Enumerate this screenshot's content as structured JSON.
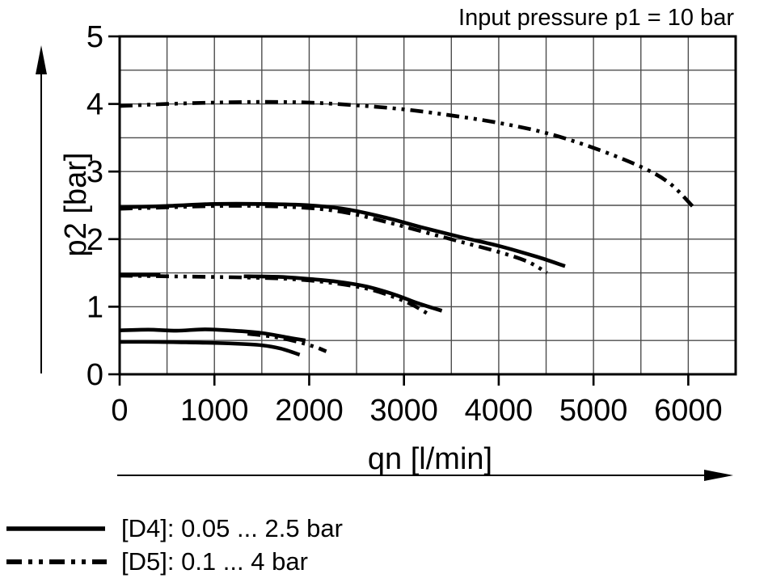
{
  "title": "Input pressure p1 = 10 bar",
  "colors": {
    "line": "#000000",
    "grid": "#4d4d4d",
    "frame": "#000000",
    "background": "#ffffff",
    "text": "#000000"
  },
  "chart_data": {
    "type": "line",
    "title": "Input pressure p1 = 10 bar",
    "xlabel": "qn [l/min]",
    "ylabel": "p2 [bar]",
    "xlim": [
      0,
      6500
    ],
    "ylim": [
      0,
      5
    ],
    "x_ticks": [
      0,
      1000,
      2000,
      3000,
      4000,
      5000,
      6000
    ],
    "y_ticks": [
      0,
      1,
      2,
      3,
      4,
      5
    ],
    "x_grid_step": 500,
    "y_grid_step": 0.5,
    "grid": true,
    "legend_position": "bottom-left",
    "legend": [
      {
        "label": "[D4]: 0.05 ... 2.5 bar",
        "style": "solid"
      },
      {
        "label": "[D5]: 0.1 ... 4 bar",
        "style": "dash-dot-dot"
      }
    ],
    "series": [
      {
        "id": "d4-setting-2.5bar",
        "group": "[D4]",
        "style": "solid",
        "pressure_setting_bar": 2.5,
        "segments": [
          [
            [
              0,
              2.47
            ],
            [
              500,
              2.49
            ],
            [
              1000,
              2.52
            ],
            [
              1500,
              2.52
            ],
            [
              2000,
              2.5
            ],
            [
              2400,
              2.44
            ],
            [
              2800,
              2.32
            ],
            [
              3200,
              2.17
            ],
            [
              3600,
              2.03
            ],
            [
              4000,
              1.9
            ],
            [
              4400,
              1.74
            ],
            [
              4700,
              1.6
            ]
          ]
        ]
      },
      {
        "id": "d4-setting-1.5bar",
        "group": "[D4]",
        "style": "solid",
        "pressure_setting_bar": 1.5,
        "segments": [
          [
            [
              0,
              1.47
            ],
            [
              430,
              1.47
            ]
          ],
          [
            [
              1310,
              1.45
            ],
            [
              1700,
              1.44
            ],
            [
              2000,
              1.41
            ],
            [
              2300,
              1.37
            ],
            [
              2600,
              1.3
            ],
            [
              2900,
              1.18
            ],
            [
              3150,
              1.05
            ],
            [
              3400,
              0.94
            ]
          ]
        ]
      },
      {
        "id": "d4-setting-0.65bar",
        "group": "[D4]",
        "style": "solid",
        "pressure_setting_bar": 0.65,
        "segments": [
          [
            [
              0,
              0.65
            ],
            [
              300,
              0.66
            ],
            [
              600,
              0.645
            ],
            [
              900,
              0.665
            ],
            [
              1200,
              0.645
            ],
            [
              1500,
              0.61
            ],
            [
              1750,
              0.55
            ],
            [
              1960,
              0.5
            ]
          ]
        ]
      },
      {
        "id": "d4-setting-0.5bar",
        "group": "[D4]",
        "style": "solid",
        "pressure_setting_bar": 0.5,
        "segments": [
          [
            [
              0,
              0.48
            ],
            [
              400,
              0.48
            ],
            [
              800,
              0.47
            ],
            [
              1200,
              0.455
            ],
            [
              1500,
              0.43
            ],
            [
              1700,
              0.38
            ],
            [
              1900,
              0.29
            ]
          ]
        ]
      },
      {
        "id": "d5-setting-4bar",
        "group": "[D5]",
        "style": "dash-dot-dot",
        "pressure_setting_bar": 4,
        "segments": [
          [
            [
              0,
              3.97
            ],
            [
              500,
              4.0
            ],
            [
              1000,
              4.02
            ],
            [
              1500,
              4.03
            ],
            [
              2000,
              4.02
            ],
            [
              2500,
              3.98
            ],
            [
              3000,
              3.92
            ],
            [
              3500,
              3.83
            ],
            [
              4000,
              3.72
            ],
            [
              4500,
              3.57
            ],
            [
              5000,
              3.35
            ],
            [
              5500,
              3.07
            ],
            [
              5800,
              2.83
            ],
            [
              6050,
              2.48
            ]
          ]
        ]
      },
      {
        "id": "d5-setting-2.5bar",
        "group": "[D5]",
        "style": "dash-dot-dot",
        "pressure_setting_bar": 2.5,
        "segments": [
          [
            [
              0,
              2.45
            ],
            [
              500,
              2.47
            ],
            [
              1000,
              2.49
            ],
            [
              1500,
              2.49
            ],
            [
              2000,
              2.46
            ],
            [
              2400,
              2.39
            ],
            [
              2800,
              2.26
            ],
            [
              3200,
              2.11
            ],
            [
              3600,
              1.96
            ],
            [
              4000,
              1.81
            ],
            [
              4300,
              1.67
            ],
            [
              4510,
              1.5
            ]
          ]
        ]
      },
      {
        "id": "d5-setting-1.5bar",
        "group": "[D5]",
        "style": "dash-dot-dot",
        "pressure_setting_bar": 1.5,
        "segments": [
          [
            [
              0,
              1.46
            ],
            [
              500,
              1.45
            ],
            [
              1000,
              1.44
            ],
            [
              1400,
              1.43
            ],
            [
              1800,
              1.41
            ],
            [
              2200,
              1.36
            ],
            [
              2600,
              1.27
            ],
            [
              2900,
              1.14
            ],
            [
              3100,
              1.02
            ],
            [
              3270,
              0.88
            ]
          ]
        ]
      },
      {
        "id": "d5-setting-0.6bar",
        "group": "[D5]",
        "style": "dash-dot-dot",
        "pressure_setting_bar": 0.6,
        "segments": [
          [
            [
              1350,
              0.6
            ],
            [
              1600,
              0.56
            ],
            [
              1850,
              0.49
            ],
            [
              2050,
              0.41
            ],
            [
              2180,
              0.34
            ]
          ]
        ]
      }
    ]
  }
}
